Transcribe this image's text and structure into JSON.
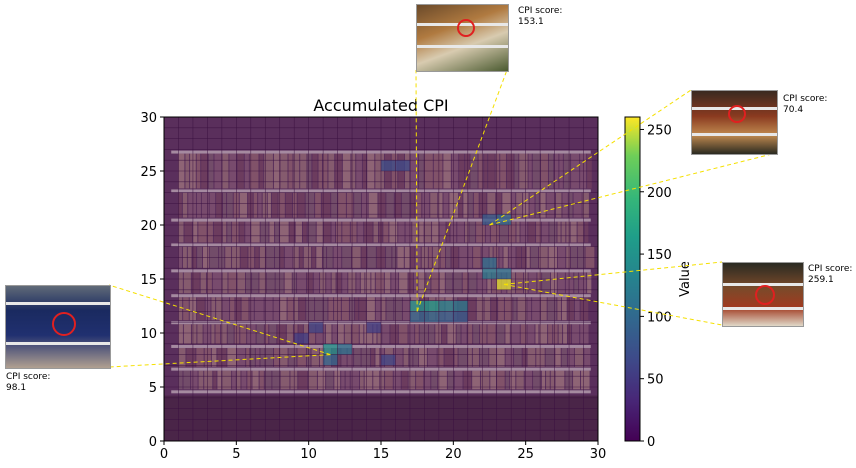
{
  "chart_data": {
    "type": "heatmap",
    "title": "Accumulated CPI",
    "xlabel": "",
    "ylabel": "",
    "xlim": [
      0,
      30
    ],
    "ylim": [
      0,
      30
    ],
    "xticks": [
      "0",
      "5",
      "10",
      "15",
      "20",
      "25",
      "30"
    ],
    "yticks": [
      "0",
      "5",
      "10",
      "15",
      "20",
      "25",
      "30"
    ],
    "grid": true,
    "grid_cells": [
      30,
      30
    ],
    "background": "supermarket shelf photo",
    "colormap": "viridis",
    "colorbar": {
      "label": "Value",
      "range": [
        0,
        260
      ],
      "ticks": [
        "0",
        "50",
        "100",
        "150",
        "200",
        "250"
      ]
    },
    "highlighted_cells": [
      {
        "x": 17,
        "y": 12,
        "value": 150
      },
      {
        "x": 18,
        "y": 12,
        "value": 160
      },
      {
        "x": 19,
        "y": 12,
        "value": 130
      },
      {
        "x": 20,
        "y": 12,
        "value": 120
      },
      {
        "x": 17,
        "y": 11,
        "value": 95
      },
      {
        "x": 18,
        "y": 11,
        "value": 100
      },
      {
        "x": 19,
        "y": 11,
        "value": 90
      },
      {
        "x": 20,
        "y": 11,
        "value": 85
      },
      {
        "x": 11,
        "y": 8,
        "value": 150
      },
      {
        "x": 11,
        "y": 7,
        "value": 95
      },
      {
        "x": 12,
        "y": 8,
        "value": 110
      },
      {
        "x": 23,
        "y": 14,
        "value": 255
      },
      {
        "x": 22,
        "y": 15,
        "value": 120
      },
      {
        "x": 23,
        "y": 15,
        "value": 110
      },
      {
        "x": 22,
        "y": 16,
        "value": 105
      },
      {
        "x": 23,
        "y": 20,
        "value": 100
      },
      {
        "x": 22,
        "y": 20,
        "value": 85
      },
      {
        "x": 15,
        "y": 25,
        "value": 70
      },
      {
        "x": 16,
        "y": 25,
        "value": 65
      },
      {
        "x": 10,
        "y": 10,
        "value": 60
      },
      {
        "x": 14,
        "y": 10,
        "value": 55
      },
      {
        "x": 15,
        "y": 7,
        "value": 60
      },
      {
        "x": 9,
        "y": 9,
        "value": 55
      }
    ],
    "annotations": [
      {
        "label": "CPI score:",
        "value": "153.1",
        "target": [
          17.5,
          12
        ]
      },
      {
        "label": "CPI score:",
        "value": "70.4",
        "target": [
          22.5,
          20
        ]
      },
      {
        "label": "CPI score:",
        "value": "259.1",
        "target": [
          23.5,
          14.5
        ]
      },
      {
        "label": "CPI score:",
        "value": "98.1",
        "target": [
          11.5,
          8
        ]
      }
    ]
  },
  "colors": {
    "overlay": "#4a1a5a",
    "grid": "#3a1040",
    "leader_line": "#f5e000"
  }
}
